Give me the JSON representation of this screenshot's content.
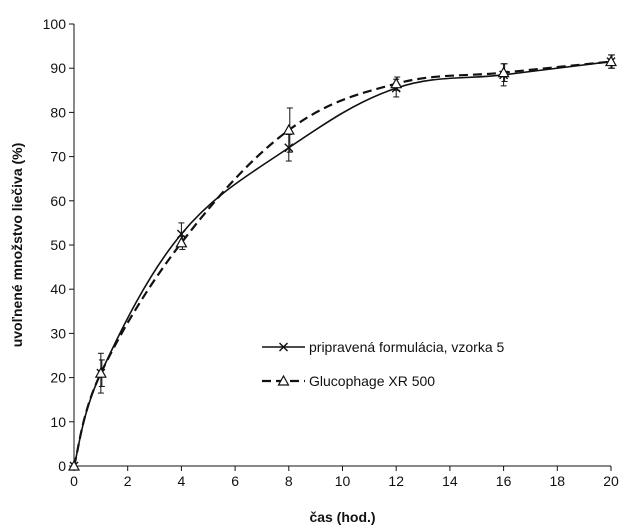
{
  "chart_data": {
    "type": "line",
    "xlabel": "čas (hod.)",
    "ylabel": "uvoľnené množstvo liečiva (%)",
    "xlim": [
      0,
      20
    ],
    "ylim": [
      0,
      100
    ],
    "xticks": [
      0,
      2,
      4,
      6,
      8,
      10,
      12,
      14,
      16,
      18,
      20
    ],
    "yticks": [
      0,
      10,
      20,
      30,
      40,
      50,
      60,
      70,
      80,
      90,
      100
    ],
    "grid": false,
    "legend_position": "center-right",
    "x": [
      0,
      1,
      4,
      8,
      12,
      16,
      20
    ],
    "series": [
      {
        "name": "pripravená formulácia, vzorka 5",
        "values": [
          0,
          21,
          52.5,
          72,
          85.5,
          88.5,
          91.5
        ],
        "error": [
          0,
          4.5,
          2.5,
          3,
          2,
          2.5,
          1.5
        ],
        "marker": "x",
        "style": "solid",
        "color": "#111111"
      },
      {
        "name": "Glucophage XR 500",
        "values": [
          0,
          21,
          50.5,
          76,
          86.5,
          89,
          91.5
        ],
        "error": [
          0,
          3,
          1.5,
          5,
          1.5,
          2,
          1.5
        ],
        "marker": "triangle",
        "style": "dashed",
        "color": "#111111"
      }
    ]
  }
}
